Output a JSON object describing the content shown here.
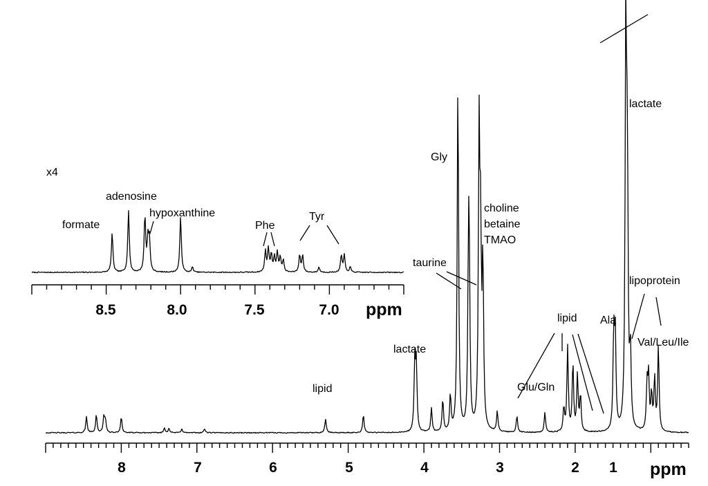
{
  "chart_data": [
    {
      "type": "line",
      "panel": "main",
      "xlabel": "ppm",
      "xlim": [
        9.0,
        0.5
      ],
      "x_reversed": true,
      "xticks": [
        "8",
        "7",
        "6",
        "5",
        "4",
        "3",
        "2",
        "1"
      ],
      "annotations": [
        "lactate",
        "Gly",
        "choline",
        "betaine",
        "TMAO",
        "taurine",
        "lipid",
        "lactate",
        "Glu/Gln",
        "lipid",
        "Ala",
        "lipoprotein",
        "Val/Leu/Ile"
      ],
      "peaks": [
        {
          "ppm": 8.46,
          "height": 0.04
        },
        {
          "ppm": 8.33,
          "height": 0.045
        },
        {
          "ppm": 8.23,
          "height": 0.04
        },
        {
          "ppm": 8.21,
          "height": 0.03
        },
        {
          "ppm": 8.0,
          "height": 0.04
        },
        {
          "ppm": 7.43,
          "height": 0.012
        },
        {
          "ppm": 7.37,
          "height": 0.012
        },
        {
          "ppm": 7.2,
          "height": 0.01
        },
        {
          "ppm": 6.9,
          "height": 0.01
        },
        {
          "ppm": 5.3,
          "height": 0.035
        },
        {
          "ppm": 4.8,
          "height": 0.045
        },
        {
          "ppm": 4.12,
          "height": 0.17
        },
        {
          "ppm": 4.1,
          "height": 0.16
        },
        {
          "ppm": 3.9,
          "height": 0.06
        },
        {
          "ppm": 3.75,
          "height": 0.08
        },
        {
          "ppm": 3.65,
          "height": 0.09
        },
        {
          "ppm": 3.55,
          "height": 0.87
        },
        {
          "ppm": 3.41,
          "height": 0.36
        },
        {
          "ppm": 3.4,
          "height": 0.33
        },
        {
          "ppm": 3.27,
          "height": 0.71
        },
        {
          "ppm": 3.25,
          "height": 0.42
        },
        {
          "ppm": 3.22,
          "height": 0.4
        },
        {
          "ppm": 3.03,
          "height": 0.05
        },
        {
          "ppm": 2.77,
          "height": 0.04
        },
        {
          "ppm": 2.4,
          "height": 0.05
        },
        {
          "ppm": 2.15,
          "height": 0.06
        },
        {
          "ppm": 2.1,
          "height": 0.21
        },
        {
          "ppm": 2.03,
          "height": 0.17
        },
        {
          "ppm": 1.97,
          "height": 0.14
        },
        {
          "ppm": 1.93,
          "height": 0.09
        },
        {
          "ppm": 1.49,
          "height": 0.23
        },
        {
          "ppm": 1.47,
          "height": 0.23
        },
        {
          "ppm": 1.33,
          "height": 1.0
        },
        {
          "ppm": 1.31,
          "height": 0.6
        },
        {
          "ppm": 1.27,
          "height": 0.18
        },
        {
          "ppm": 1.05,
          "height": 0.11
        },
        {
          "ppm": 1.03,
          "height": 0.13
        },
        {
          "ppm": 0.99,
          "height": 0.09
        },
        {
          "ppm": 0.95,
          "height": 0.13
        },
        {
          "ppm": 0.9,
          "height": 0.21
        }
      ]
    },
    {
      "type": "line",
      "panel": "inset",
      "scale_label": "x4",
      "xlabel": "ppm",
      "xlim": [
        9.0,
        6.5
      ],
      "x_reversed": true,
      "xticks": [
        "8.5",
        "8.0",
        "7.5",
        "7.0"
      ],
      "annotations": [
        "formate",
        "adenosine",
        "hypoxanthine",
        "Phe",
        "Tyr"
      ],
      "peaks": [
        {
          "ppm": 8.46,
          "height": 0.6
        },
        {
          "ppm": 8.35,
          "height": 0.95
        },
        {
          "ppm": 8.24,
          "height": 0.85
        },
        {
          "ppm": 8.22,
          "height": 0.45
        },
        {
          "ppm": 8.21,
          "height": 0.48
        },
        {
          "ppm": 8.0,
          "height": 0.85
        },
        {
          "ppm": 7.92,
          "height": 0.08
        },
        {
          "ppm": 7.43,
          "height": 0.32
        },
        {
          "ppm": 7.41,
          "height": 0.35
        },
        {
          "ppm": 7.39,
          "height": 0.26
        },
        {
          "ppm": 7.37,
          "height": 0.22
        },
        {
          "ppm": 7.35,
          "height": 0.3
        },
        {
          "ppm": 7.33,
          "height": 0.22
        },
        {
          "ppm": 7.31,
          "height": 0.18
        },
        {
          "ppm": 7.2,
          "height": 0.26
        },
        {
          "ppm": 7.18,
          "height": 0.26
        },
        {
          "ppm": 7.07,
          "height": 0.08
        },
        {
          "ppm": 6.92,
          "height": 0.26
        },
        {
          "ppm": 6.9,
          "height": 0.26
        },
        {
          "ppm": 6.86,
          "height": 0.08
        }
      ]
    }
  ]
}
